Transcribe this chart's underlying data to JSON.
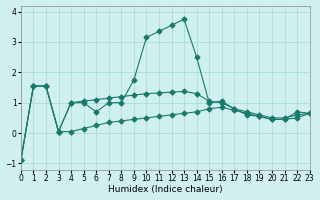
{
  "xlabel": "Humidex (Indice chaleur)",
  "ylabel": "",
  "xlim": [
    0,
    23
  ],
  "ylim": [
    -1.2,
    4.2
  ],
  "yticks": [
    -1,
    0,
    1,
    2,
    3,
    4
  ],
  "xticks": [
    0,
    1,
    2,
    3,
    4,
    5,
    6,
    7,
    8,
    9,
    10,
    11,
    12,
    13,
    14,
    15,
    16,
    17,
    18,
    19,
    20,
    21,
    22,
    23
  ],
  "bg_color": "#d0f0f0",
  "grid_color": "#a0d8d8",
  "line_color": "#1a7a6a",
  "lines": [
    {
      "x": [
        0,
        1,
        2,
        3,
        4,
        5,
        6,
        7,
        8,
        9,
        10,
        11,
        12,
        13,
        14,
        15,
        16,
        17,
        18,
        19,
        20,
        21,
        22,
        23
      ],
      "y": [
        -0.9,
        1.55,
        1.55,
        0.05,
        1.0,
        1.0,
        0.7,
        1.0,
        1.0,
        1.75,
        3.15,
        3.35,
        3.55,
        3.75,
        2.5,
        1.0,
        1.05,
        0.8,
        0.6,
        0.55,
        0.45,
        0.45,
        0.7,
        0.65
      ]
    },
    {
      "x": [
        0,
        1,
        2,
        3,
        4,
        5,
        6,
        7,
        8,
        9,
        10,
        11,
        12,
        13,
        14,
        15,
        16,
        17,
        18,
        19,
        20,
        21,
        22,
        23
      ],
      "y": [
        -0.9,
        1.55,
        1.55,
        0.05,
        0.05,
        0.15,
        0.25,
        0.35,
        0.4,
        0.45,
        0.5,
        0.55,
        0.6,
        0.65,
        0.7,
        0.8,
        0.85,
        0.75,
        0.65,
        0.55,
        0.45,
        0.45,
        0.5,
        0.65
      ]
    },
    {
      "x": [
        0,
        1,
        2,
        3,
        4,
        5,
        6,
        7,
        8,
        9,
        10,
        11,
        12,
        13,
        14,
        15,
        16,
        17,
        18,
        19,
        20,
        21,
        22,
        23
      ],
      "y": [
        -0.9,
        1.55,
        1.55,
        0.05,
        1.0,
        1.05,
        1.1,
        1.15,
        1.2,
        1.25,
        1.3,
        1.32,
        1.35,
        1.37,
        1.3,
        1.05,
        1.0,
        0.8,
        0.7,
        0.6,
        0.5,
        0.5,
        0.6,
        0.65
      ]
    }
  ]
}
